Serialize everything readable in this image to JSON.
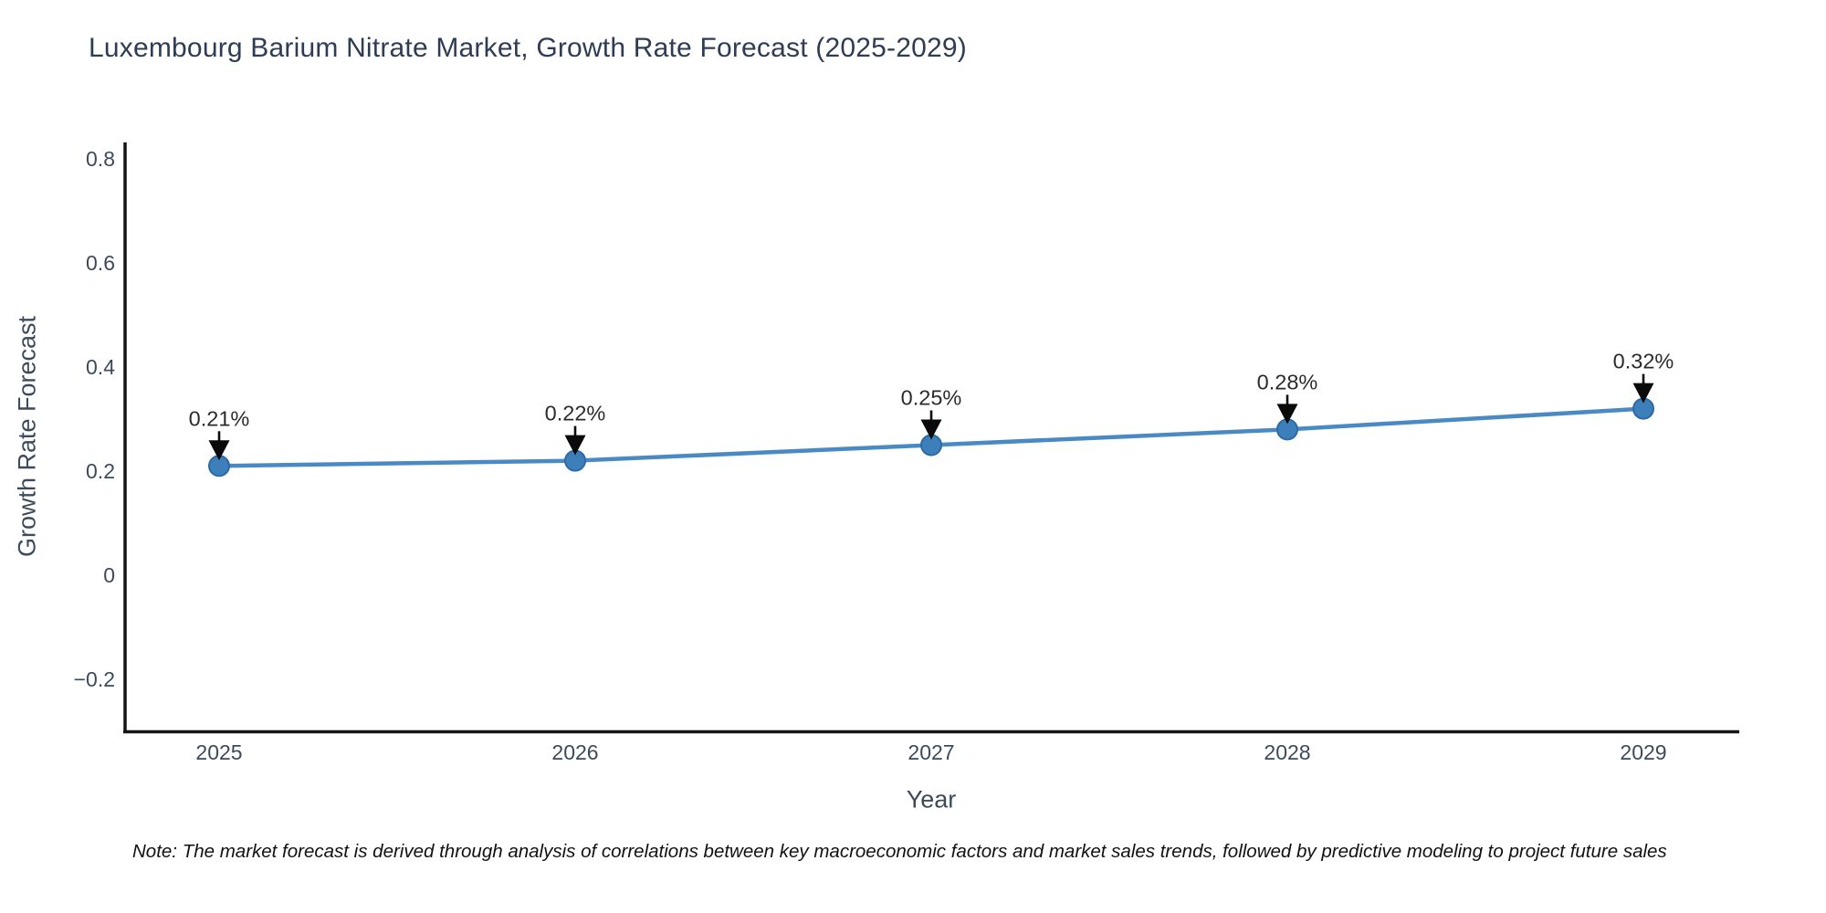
{
  "title": "Luxembourg Barium Nitrate Market, Growth Rate Forecast (2025-2029)",
  "note": "Note: The market forecast is derived through analysis of correlations between key macroeconomic factors and market sales trends, followed by predictive modeling to project future sales",
  "chart_data": {
    "type": "line",
    "title": "Luxembourg Barium Nitrate Market, Growth Rate Forecast (2025-2029)",
    "xlabel": "Year",
    "ylabel": "Growth Rate Forecast",
    "x": [
      2025,
      2026,
      2027,
      2028,
      2029
    ],
    "values": [
      0.21,
      0.22,
      0.25,
      0.28,
      0.32
    ],
    "point_labels": [
      "0.21%",
      "0.22%",
      "0.25%",
      "0.28%",
      "0.32%"
    ],
    "xtick_labels": [
      "2025",
      "2026",
      "2027",
      "2028",
      "2029"
    ],
    "ytick_values": [
      -0.2,
      0,
      0.2,
      0.4,
      0.6,
      0.8
    ],
    "ytick_labels": [
      "−0.2",
      "0",
      "0.2",
      "0.4",
      "0.6",
      "0.8"
    ],
    "ylim": [
      -0.3,
      0.83
    ],
    "grid": false,
    "legend": false,
    "colors": {
      "line": "#4a8ac4",
      "marker_fill": "#3c7fbb",
      "marker_edge": "#2e6aa5",
      "axis": "#141414",
      "tick_label": "#3d4a5c",
      "annotation_text": "#2b2b2b",
      "annotation_arrow": "#0a0a0a",
      "title": "#2e3c55"
    }
  }
}
